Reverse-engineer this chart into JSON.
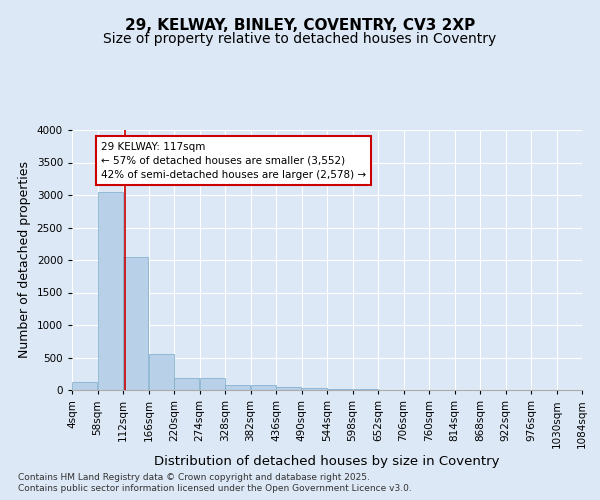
{
  "title_line1": "29, KELWAY, BINLEY, COVENTRY, CV3 2XP",
  "title_line2": "Size of property relative to detached houses in Coventry",
  "xlabel": "Distribution of detached houses by size in Coventry",
  "ylabel": "Number of detached properties",
  "bar_color": "#b8d0e8",
  "bar_edge_color": "#7aaaca",
  "background_color": "#dce8f5",
  "fig_background_color": "#dce8f5",
  "grid_color": "#ffffff",
  "vline_x": 117,
  "vline_color": "#cc0000",
  "annotation_text": "29 KELWAY: 117sqm\n← 57% of detached houses are smaller (3,552)\n42% of semi-detached houses are larger (2,578) →",
  "annotation_box_color": "#ffffff",
  "annotation_box_edge": "#cc0000",
  "bin_edges": [
    4,
    58,
    112,
    166,
    220,
    274,
    328,
    382,
    436,
    490,
    544,
    598,
    652,
    706,
    760,
    814,
    868,
    922,
    976,
    1030,
    1084
  ],
  "bar_heights": [
    130,
    3050,
    2050,
    560,
    180,
    180,
    80,
    70,
    50,
    30,
    15,
    8,
    5,
    3,
    2,
    1,
    1,
    0,
    0,
    1
  ],
  "ylim": [
    0,
    4000
  ],
  "yticks": [
    0,
    500,
    1000,
    1500,
    2000,
    2500,
    3000,
    3500,
    4000
  ],
  "footnote_line1": "Contains HM Land Registry data © Crown copyright and database right 2025.",
  "footnote_line2": "Contains public sector information licensed under the Open Government Licence v3.0.",
  "title_fontsize": 11,
  "subtitle_fontsize": 10,
  "axis_label_fontsize": 9,
  "tick_fontsize": 7.5,
  "annotation_fontsize": 7.5,
  "footnote_fontsize": 6.5
}
